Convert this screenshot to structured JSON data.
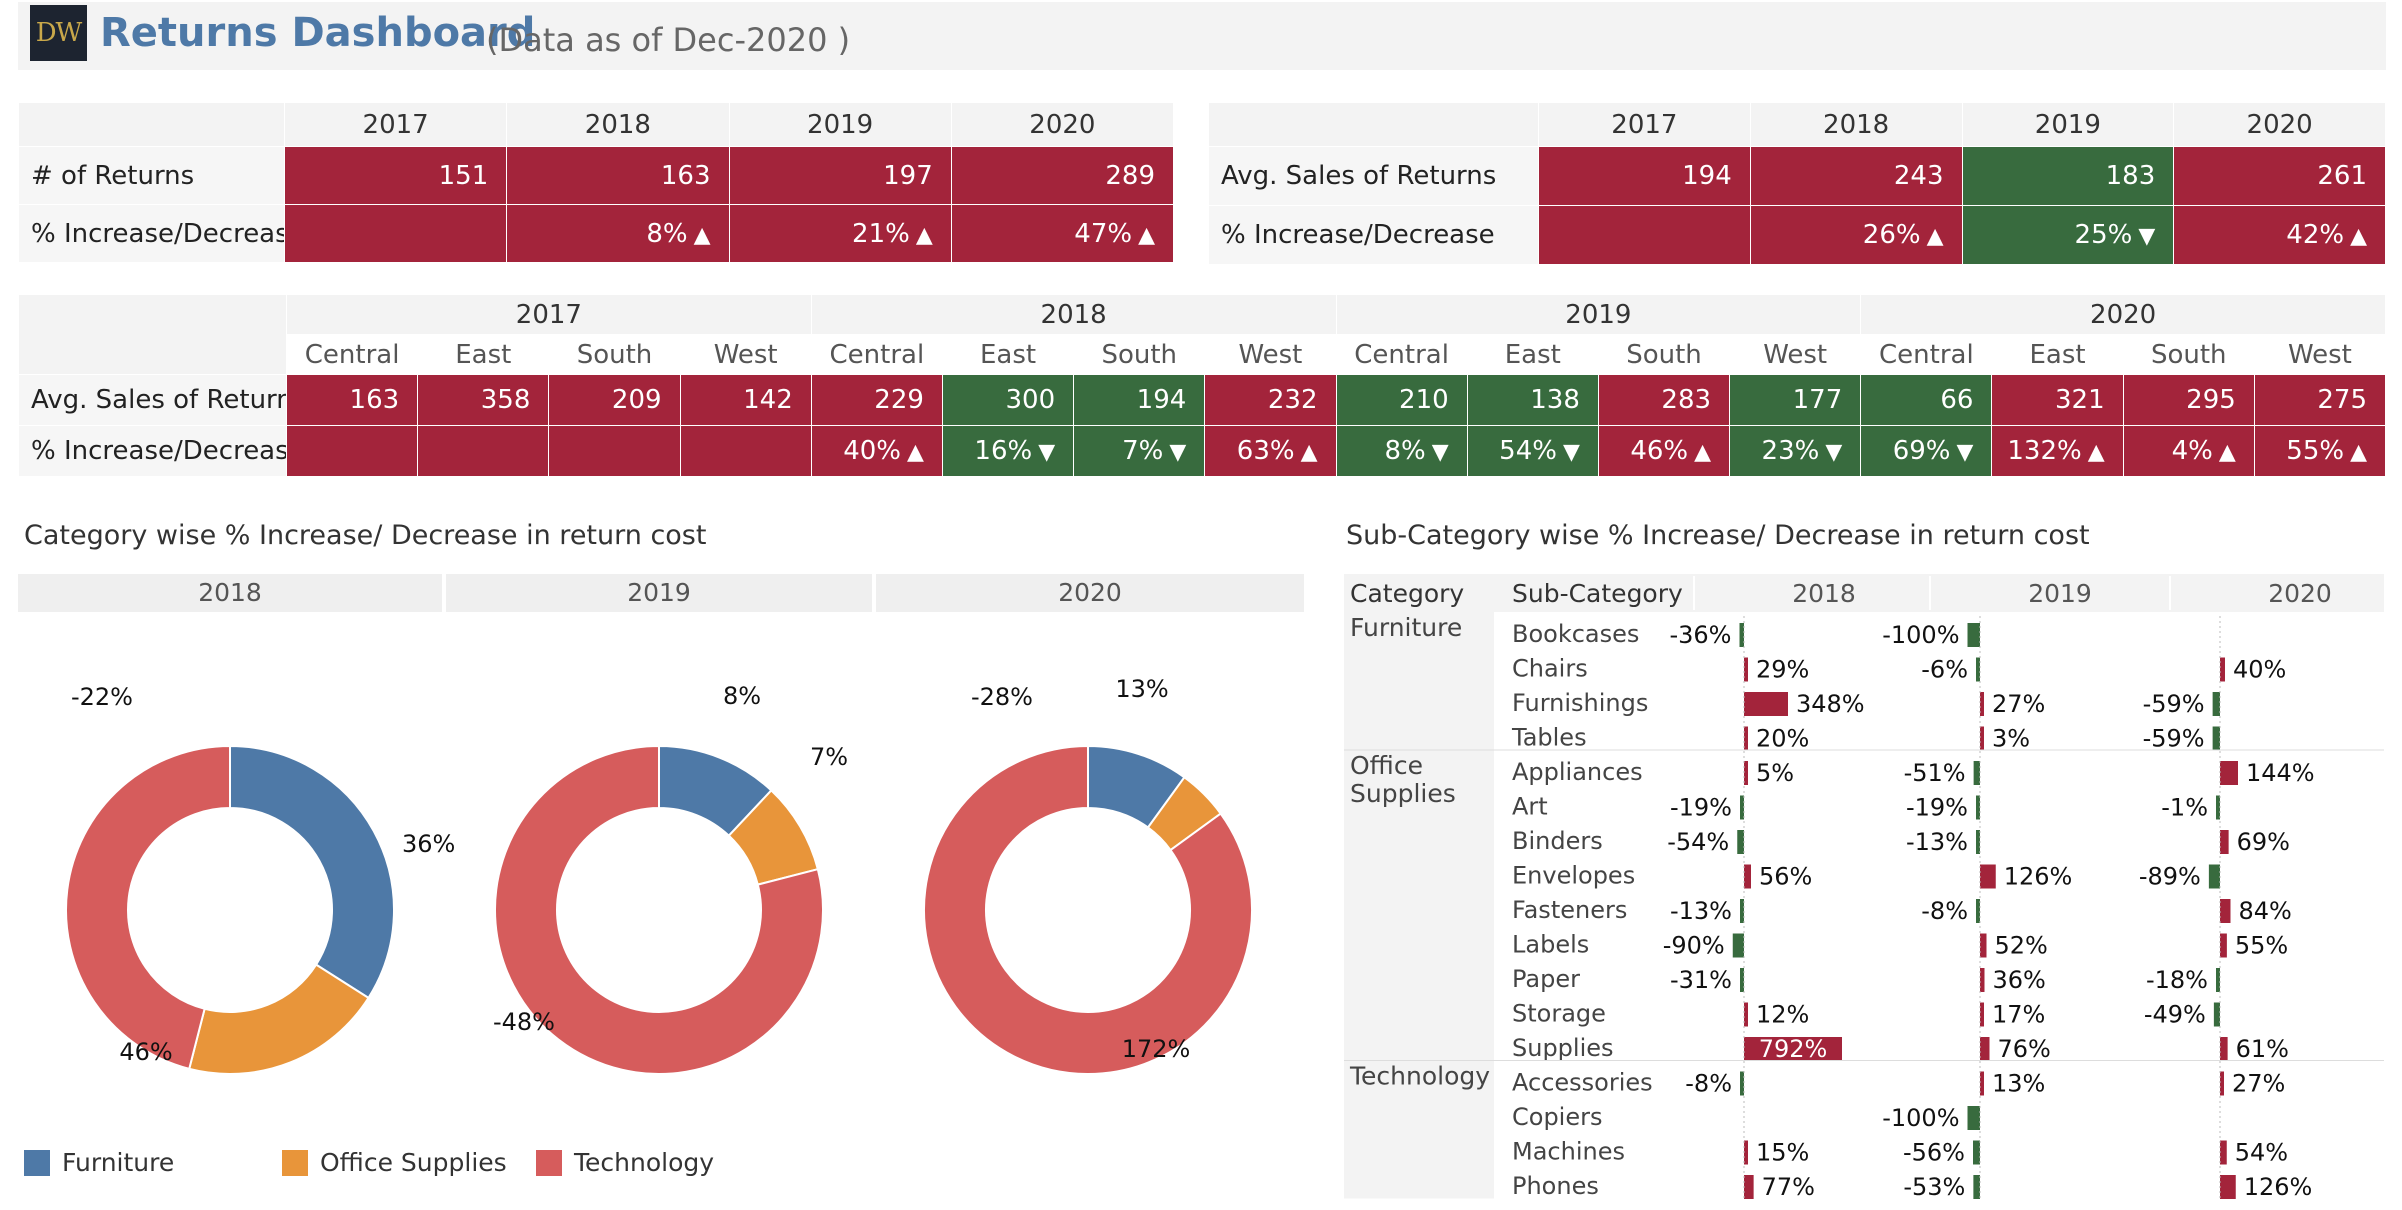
{
  "header": {
    "logo_text": "DW",
    "title": "Returns Dashboard",
    "subtitle": "(Data as of Dec-2020 )"
  },
  "colors": {
    "red": "#a3243b",
    "green": "#386b3e",
    "furniture": "#4e79a7",
    "office": "#e8953a",
    "technology": "#d65c5c"
  },
  "returns_table": {
    "years": [
      "2017",
      "2018",
      "2019",
      "2020"
    ],
    "rows": [
      {
        "label": "# of Returns",
        "cells": [
          {
            "v": "151",
            "c": "red"
          },
          {
            "v": "163",
            "c": "red"
          },
          {
            "v": "197",
            "c": "red"
          },
          {
            "v": "289",
            "c": "red"
          }
        ]
      },
      {
        "label": "% Increase/Decrease",
        "cells": [
          {
            "v": "",
            "c": "red"
          },
          {
            "v": "8%",
            "c": "red",
            "a": "▲"
          },
          {
            "v": "21%",
            "c": "red",
            "a": "▲"
          },
          {
            "v": "47%",
            "c": "red",
            "a": "▲"
          }
        ]
      }
    ]
  },
  "avg_sales_table": {
    "years": [
      "2017",
      "2018",
      "2019",
      "2020"
    ],
    "rows": [
      {
        "label": "Avg. Sales of Returns",
        "cells": [
          {
            "v": "194",
            "c": "red"
          },
          {
            "v": "243",
            "c": "red"
          },
          {
            "v": "183",
            "c": "green"
          },
          {
            "v": "261",
            "c": "red"
          }
        ]
      },
      {
        "label": "% Increase/Decrease",
        "cells": [
          {
            "v": "",
            "c": "red"
          },
          {
            "v": "26%",
            "c": "red",
            "a": "▲"
          },
          {
            "v": "25%",
            "c": "green",
            "a": "▼"
          },
          {
            "v": "42%",
            "c": "red",
            "a": "▲"
          }
        ]
      }
    ]
  },
  "region_table": {
    "years": [
      "2017",
      "2018",
      "2019",
      "2020"
    ],
    "regions": [
      "Central",
      "East",
      "South",
      "West"
    ],
    "rows": [
      {
        "label": "Avg. Sales of Returns",
        "cells": [
          {
            "v": "163",
            "c": "red"
          },
          {
            "v": "358",
            "c": "red"
          },
          {
            "v": "209",
            "c": "red"
          },
          {
            "v": "142",
            "c": "red"
          },
          {
            "v": "229",
            "c": "red"
          },
          {
            "v": "300",
            "c": "green"
          },
          {
            "v": "194",
            "c": "green"
          },
          {
            "v": "232",
            "c": "red"
          },
          {
            "v": "210",
            "c": "green"
          },
          {
            "v": "138",
            "c": "green"
          },
          {
            "v": "283",
            "c": "red"
          },
          {
            "v": "177",
            "c": "green"
          },
          {
            "v": "66",
            "c": "green"
          },
          {
            "v": "321",
            "c": "red"
          },
          {
            "v": "295",
            "c": "red"
          },
          {
            "v": "275",
            "c": "red"
          }
        ]
      },
      {
        "label": "% Increase/Decrease",
        "cells": [
          {
            "v": "",
            "c": "red"
          },
          {
            "v": "",
            "c": "red"
          },
          {
            "v": "",
            "c": "red"
          },
          {
            "v": "",
            "c": "red"
          },
          {
            "v": "40%",
            "c": "red",
            "a": "▲"
          },
          {
            "v": "16%",
            "c": "green",
            "a": "▼"
          },
          {
            "v": "7%",
            "c": "green",
            "a": "▼"
          },
          {
            "v": "63%",
            "c": "red",
            "a": "▲"
          },
          {
            "v": "8%",
            "c": "green",
            "a": "▼"
          },
          {
            "v": "54%",
            "c": "green",
            "a": "▼"
          },
          {
            "v": "46%",
            "c": "red",
            "a": "▲"
          },
          {
            "v": "23%",
            "c": "green",
            "a": "▼"
          },
          {
            "v": "69%",
            "c": "green",
            "a": "▼"
          },
          {
            "v": "132%",
            "c": "red",
            "a": "▲"
          },
          {
            "v": "4%",
            "c": "red",
            "a": "▲"
          },
          {
            "v": "55%",
            "c": "red",
            "a": "▲"
          }
        ]
      }
    ]
  },
  "category_section": {
    "title": "Category wise % Increase/ Decrease in return cost",
    "years": [
      "2018",
      "2019",
      "2020"
    ]
  },
  "subcategory_section": {
    "title": "Sub-Category wise % Increase/ Decrease in return cost",
    "col_category": "Category",
    "col_subcategory": "Sub-Category",
    "years": [
      "2018",
      "2019",
      "2020"
    ]
  },
  "legend": [
    {
      "label": "Furniture",
      "color": "#4e79a7"
    },
    {
      "label": "Office Supplies",
      "color": "#e8953a"
    },
    {
      "label": "Technology",
      "color": "#d65c5c"
    }
  ],
  "chart_data": [
    {
      "type": "pie",
      "title": "2018",
      "categories": [
        "Furniture",
        "Office Supplies",
        "Technology"
      ],
      "share": [
        0.34,
        0.2,
        0.46
      ],
      "labels": [
        "36%",
        "-22%",
        "46%"
      ]
    },
    {
      "type": "pie",
      "title": "2019",
      "categories": [
        "Furniture",
        "Office Supplies",
        "Technology"
      ],
      "share": [
        0.12,
        0.09,
        0.79
      ],
      "labels": [
        "8%",
        "7%",
        "-48%"
      ]
    },
    {
      "type": "pie",
      "title": "2020",
      "categories": [
        "Furniture",
        "Office Supplies",
        "Technology"
      ],
      "share": [
        0.1,
        0.05,
        0.85
      ],
      "labels": [
        "-28%",
        "13%",
        "172%"
      ]
    },
    {
      "type": "bar",
      "title": "Sub-Category wise % Increase/ Decrease in return cost",
      "unit": "%",
      "groups": [
        {
          "category": "Furniture",
          "items": [
            {
              "name": "Bookcases",
              "values": [
                -36,
                -100,
                0
              ],
              "labels": [
                "-36%",
                "-100%",
                ""
              ]
            },
            {
              "name": "Chairs",
              "values": [
                29,
                -6,
                40
              ],
              "labels": [
                "29%",
                "-6%",
                "40%"
              ]
            },
            {
              "name": "Furnishings",
              "values": [
                348,
                27,
                -59
              ],
              "labels": [
                "348%",
                "27%",
                "-59%"
              ]
            },
            {
              "name": "Tables",
              "values": [
                20,
                3,
                -59
              ],
              "labels": [
                "20%",
                "3%",
                "-59%"
              ]
            }
          ]
        },
        {
          "category": "Office\nSupplies",
          "items": [
            {
              "name": "Appliances",
              "values": [
                5,
                -51,
                144
              ],
              "labels": [
                "5%",
                "-51%",
                "144%"
              ]
            },
            {
              "name": "Art",
              "values": [
                -19,
                -19,
                -1
              ],
              "labels": [
                "-19%",
                "-19%",
                "-1%"
              ]
            },
            {
              "name": "Binders",
              "values": [
                -54,
                -13,
                69
              ],
              "labels": [
                "-54%",
                "-13%",
                "69%"
              ]
            },
            {
              "name": "Envelopes",
              "values": [
                56,
                126,
                -89
              ],
              "labels": [
                "56%",
                "126%",
                "-89%"
              ]
            },
            {
              "name": "Fasteners",
              "values": [
                -13,
                -8,
                84
              ],
              "labels": [
                "-13%",
                "-8%",
                "84%"
              ]
            },
            {
              "name": "Labels",
              "values": [
                -90,
                52,
                55
              ],
              "labels": [
                "-90%",
                "52%",
                "55%"
              ]
            },
            {
              "name": "Paper",
              "values": [
                -31,
                36,
                -18
              ],
              "labels": [
                "-31%",
                "36%",
                "-18%"
              ]
            },
            {
              "name": "Storage",
              "values": [
                12,
                17,
                -49
              ],
              "labels": [
                "12%",
                "17%",
                "-49%"
              ]
            },
            {
              "name": "Supplies",
              "values": [
                792,
                76,
                61
              ],
              "labels": [
                "792%",
                "76%",
                "61%"
              ]
            }
          ]
        },
        {
          "category": "Technology",
          "items": [
            {
              "name": "Accessories",
              "values": [
                -8,
                13,
                27
              ],
              "labels": [
                "-8%",
                "13%",
                "27%"
              ]
            },
            {
              "name": "Copiers",
              "values": [
                0,
                -100,
                0
              ],
              "labels": [
                "",
                "-100%",
                ""
              ]
            },
            {
              "name": "Machines",
              "values": [
                15,
                -56,
                54
              ],
              "labels": [
                "15%",
                "-56%",
                "54%"
              ]
            },
            {
              "name": "Phones",
              "values": [
                77,
                -53,
                126
              ],
              "labels": [
                "77%",
                "-53%",
                "126%"
              ]
            }
          ]
        }
      ]
    }
  ]
}
